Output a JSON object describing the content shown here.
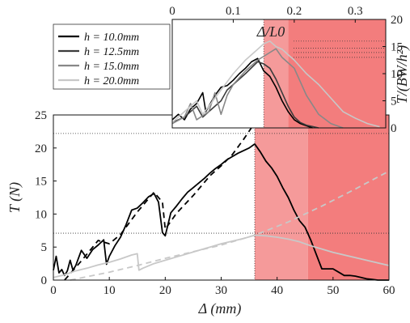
{
  "chart_data": [
    {
      "type": "line",
      "xlabel": "Δ (mm)",
      "ylabel": "T (N)",
      "xlim": [
        0,
        60
      ],
      "ylim": [
        0,
        25
      ],
      "xticks": [
        "0",
        "10",
        "20",
        "30",
        "40",
        "50",
        "60"
      ],
      "yticks": [
        "0",
        "5",
        "10",
        "15",
        "20",
        "25"
      ],
      "shaded_regions": [
        {
          "x0": 36,
          "x1": 45.5,
          "color": "#f59a9a"
        },
        {
          "x0": 45.5,
          "x1": 60,
          "color": "#f37d7d"
        }
      ],
      "reference_lines": [
        {
          "axis": "y",
          "value": 22.2,
          "style": "dotted"
        },
        {
          "axis": "y",
          "value": 7.1,
          "style": "dotted"
        },
        {
          "axis": "x",
          "value": 36,
          "style": "dotted"
        }
      ],
      "series": [
        {
          "name": "h = 10.0mm (measured)",
          "color": "#000000",
          "style": "solid",
          "x": [
            0,
            0.5,
            1,
            1.5,
            2,
            2.5,
            3,
            3.5,
            4,
            5,
            6,
            7,
            8,
            9,
            9.5,
            10,
            11,
            12,
            13,
            14,
            15,
            16,
            17,
            18,
            18.8,
            19.5,
            20,
            21,
            22,
            23,
            24,
            25,
            26,
            27,
            28,
            29,
            30,
            31,
            32,
            33,
            34,
            35,
            36,
            37,
            38,
            39,
            40,
            41,
            42,
            43,
            44,
            45,
            46,
            47,
            48,
            49,
            50,
            51,
            52,
            53,
            54,
            55,
            56,
            57,
            58,
            60
          ],
          "y": [
            1.5,
            3.6,
            1.1,
            1.6,
            0.7,
            1.4,
            3.0,
            1.5,
            2.2,
            4.5,
            3.3,
            4.6,
            5.3,
            6.1,
            2.4,
            3.6,
            5.2,
            6.5,
            8.4,
            10.6,
            10.9,
            11.7,
            12.6,
            13.1,
            11.8,
            7.2,
            6.7,
            10.2,
            11.2,
            12.3,
            13.3,
            14.0,
            14.7,
            15.4,
            16.2,
            16.9,
            17.5,
            18.2,
            18.7,
            19.2,
            19.6,
            20.0,
            20.6,
            19.4,
            18.0,
            17.0,
            15.7,
            14.0,
            12.5,
            10.6,
            9.0,
            8.0,
            6.1,
            3.9,
            1.7,
            1.7,
            1.7,
            1.2,
            0.7,
            0.7,
            0.6,
            0.4,
            0.2,
            0.1,
            0.0,
            0.0
          ]
        },
        {
          "name": "h = 10.0mm (model)",
          "color": "#000000",
          "style": "dashed",
          "x": [
            2,
            5,
            8,
            10,
            12,
            15,
            18,
            19.5,
            20,
            22,
            25,
            28,
            30,
            32,
            34,
            36
          ],
          "y": [
            0,
            2.9,
            6.0,
            5.5,
            6.9,
            10.3,
            13.3,
            11.8,
            7.7,
            10.1,
            12.8,
            15.8,
            17.3,
            19.0,
            21.3,
            23.8
          ]
        },
        {
          "name": "h = 20.0mm (measured)",
          "color": "#c8c8c8",
          "style": "solid",
          "x": [
            0,
            2,
            4,
            6,
            8,
            10,
            12,
            14,
            15,
            15.3,
            16,
            18,
            20,
            22,
            24,
            26,
            28,
            30,
            32,
            34,
            36,
            38,
            40,
            42,
            44,
            46,
            48,
            50,
            52,
            54,
            56,
            58,
            60
          ],
          "y": [
            0.4,
            0.8,
            1.4,
            1.8,
            2.3,
            2.7,
            3.2,
            3.8,
            4.0,
            1.5,
            1.8,
            2.5,
            3.0,
            3.5,
            4.0,
            4.5,
            5.0,
            5.5,
            5.9,
            6.3,
            6.8,
            6.7,
            6.5,
            6.2,
            5.8,
            5.2,
            4.7,
            4.2,
            3.8,
            3.4,
            3.0,
            2.6,
            2.2
          ]
        },
        {
          "name": "h = 20.0mm (model)",
          "color": "#c8c8c8",
          "style": "dashed",
          "x": [
            3,
            10,
            15,
            20,
            25,
            30,
            36,
            42,
            48,
            54,
            60
          ],
          "y": [
            0,
            1.2,
            2.2,
            3.3,
            4.3,
            5.3,
            6.8,
            8.8,
            11.2,
            13.8,
            16.5
          ]
        }
      ]
    },
    {
      "type": "line",
      "xlabel": "Δ/L0",
      "ylabel": "T/(BW/h²)",
      "xlim": [
        0,
        0.35
      ],
      "ylim": [
        0,
        20
      ],
      "xticks": [
        "0",
        "0.1",
        "0.2",
        "0.3"
      ],
      "yticks": [
        "0",
        "5",
        "10",
        "15",
        "20"
      ],
      "shaded_regions": [
        {
          "x0": 0.15,
          "x1": 0.19,
          "color": "#f59a9a"
        },
        {
          "x0": 0.19,
          "x1": 0.35,
          "color": "#f37d7d"
        }
      ],
      "reference_lines": [
        {
          "axis": "y",
          "value": 16.0,
          "style": "dotted"
        },
        {
          "axis": "y",
          "value": 14.7,
          "style": "dotted"
        },
        {
          "axis": "y",
          "value": 13.9,
          "style": "dotted"
        },
        {
          "axis": "y",
          "value": 13.0,
          "style": "dotted"
        },
        {
          "axis": "x",
          "value": 0.15,
          "style": "dotted"
        }
      ],
      "legend": {
        "placement": "top-left",
        "entries": [
          {
            "label": "h = 10.0mm",
            "color": "#000000"
          },
          {
            "label": "h = 12.5mm",
            "color": "#3c3c3c"
          },
          {
            "label": "h = 15.0mm",
            "color": "#888888"
          },
          {
            "label": "h = 20.0mm",
            "color": "#c8c8c8"
          }
        ]
      },
      "series": [
        {
          "name": "h = 10.0mm",
          "color": "#000000",
          "x": [
            0,
            0.01,
            0.02,
            0.03,
            0.04,
            0.05,
            0.055,
            0.06,
            0.07,
            0.08,
            0.09,
            0.1,
            0.11,
            0.12,
            0.13,
            0.14,
            0.15,
            0.16,
            0.17,
            0.18,
            0.19,
            0.2,
            0.21,
            0.22,
            0.23
          ],
          "y": [
            1.5,
            2.5,
            1.5,
            3.5,
            4.5,
            6.5,
            3.0,
            4.0,
            6.0,
            7.5,
            7.8,
            8.8,
            10.0,
            11.0,
            12.2,
            12.8,
            10.5,
            9.5,
            7.5,
            5.0,
            3.0,
            1.5,
            0.8,
            0.4,
            0.0
          ]
        },
        {
          "name": "h = 12.5mm",
          "color": "#3c3c3c",
          "x": [
            0,
            0.02,
            0.04,
            0.05,
            0.06,
            0.08,
            0.09,
            0.1,
            0.12,
            0.14,
            0.15,
            0.16,
            0.17,
            0.18,
            0.19,
            0.2,
            0.21,
            0.22,
            0.24
          ],
          "y": [
            1.0,
            2.0,
            4.0,
            2.0,
            3.0,
            5.0,
            7.0,
            8.0,
            10.0,
            12.2,
            11.8,
            11.0,
            9.0,
            6.5,
            4.0,
            2.0,
            1.0,
            0.5,
            0.0
          ]
        },
        {
          "name": "h = 15.0mm",
          "color": "#888888",
          "x": [
            0,
            0.02,
            0.03,
            0.04,
            0.06,
            0.07,
            0.08,
            0.09,
            0.1,
            0.12,
            0.14,
            0.16,
            0.17,
            0.18,
            0.2,
            0.21,
            0.22,
            0.24,
            0.26,
            0.28
          ],
          "y": [
            0.8,
            2.0,
            4.5,
            1.5,
            3.0,
            6.5,
            2.5,
            6.0,
            8.0,
            10.5,
            12.5,
            13.9,
            14.6,
            13.0,
            11.0,
            8.5,
            6.0,
            2.5,
            0.8,
            0.0
          ]
        },
        {
          "name": "h = 20.0mm",
          "color": "#c8c8c8",
          "x": [
            0,
            0.02,
            0.04,
            0.05,
            0.06,
            0.08,
            0.1,
            0.12,
            0.14,
            0.15,
            0.16,
            0.17,
            0.18,
            0.2,
            0.22,
            0.24,
            0.26,
            0.28,
            0.3,
            0.32,
            0.34
          ],
          "y": [
            1.0,
            3.0,
            5.0,
            2.5,
            4.0,
            7.0,
            10.0,
            12.5,
            14.5,
            15.5,
            16.0,
            15.0,
            14.5,
            12.5,
            10.0,
            8.0,
            5.5,
            3.0,
            1.8,
            0.8,
            0.2
          ]
        }
      ]
    }
  ]
}
